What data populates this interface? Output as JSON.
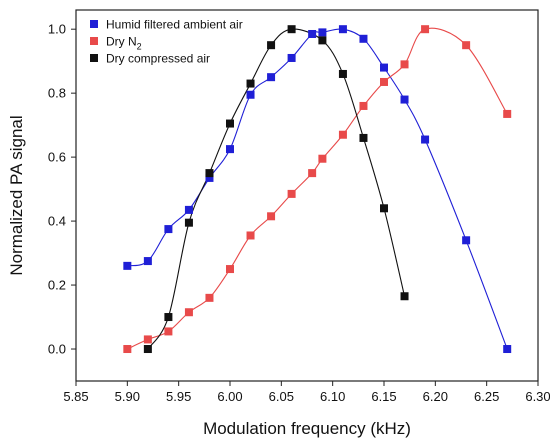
{
  "chart_data": {
    "type": "scatter",
    "xlabel": "Modulation frequency (kHz)",
    "ylabel": "Normalized PA signal",
    "xlim": [
      5.85,
      6.3
    ],
    "ylim": [
      -0.1,
      1.06
    ],
    "xticks": [
      "5.85",
      "5.90",
      "5.95",
      "6.00",
      "6.05",
      "6.10",
      "6.15",
      "6.20",
      "6.25",
      "6.30"
    ],
    "yticks": [
      "0.0",
      "0.2",
      "0.4",
      "0.6",
      "0.8",
      "1.0"
    ],
    "xtick_values": [
      5.85,
      5.9,
      5.95,
      6.0,
      6.05,
      6.1,
      6.15,
      6.2,
      6.25,
      6.3
    ],
    "ytick_values": [
      0.0,
      0.2,
      0.4,
      0.6,
      0.8,
      1.0
    ],
    "legend_position": "top-left",
    "grid": false,
    "series": [
      {
        "name": "Humid filtered ambient air",
        "color": "#1f1fd6",
        "marker": "square",
        "x": [
          5.9,
          5.92,
          5.94,
          5.96,
          5.98,
          6.0,
          6.02,
          6.04,
          6.06,
          6.08,
          6.09,
          6.11,
          6.13,
          6.15,
          6.17,
          6.19,
          6.23,
          6.27
        ],
        "y": [
          0.26,
          0.275,
          0.375,
          0.435,
          0.535,
          0.625,
          0.795,
          0.85,
          0.91,
          0.985,
          0.99,
          1.0,
          0.97,
          0.88,
          0.78,
          0.655,
          0.34,
          0.0
        ]
      },
      {
        "name": "Dry N2",
        "name_main": "Dry N",
        "name_sub": "2",
        "color": "#e84a4a",
        "marker": "square",
        "x": [
          5.9,
          5.92,
          5.94,
          5.96,
          5.98,
          6.0,
          6.02,
          6.04,
          6.06,
          6.08,
          6.09,
          6.11,
          6.13,
          6.15,
          6.17,
          6.19,
          6.23,
          6.27
        ],
        "y": [
          0.0,
          0.03,
          0.055,
          0.115,
          0.16,
          0.25,
          0.355,
          0.415,
          0.485,
          0.55,
          0.595,
          0.67,
          0.76,
          0.835,
          0.89,
          1.0,
          0.95,
          0.735
        ]
      },
      {
        "name": "Dry compressed air",
        "color": "#111111",
        "marker": "square",
        "x": [
          5.92,
          5.94,
          5.96,
          5.98,
          6.0,
          6.02,
          6.04,
          6.06,
          6.09,
          6.11,
          6.13,
          6.15,
          6.17
        ],
        "y": [
          0.0,
          0.1,
          0.395,
          0.55,
          0.705,
          0.83,
          0.95,
          1.0,
          0.965,
          0.86,
          0.66,
          0.44,
          0.165
        ]
      }
    ]
  }
}
